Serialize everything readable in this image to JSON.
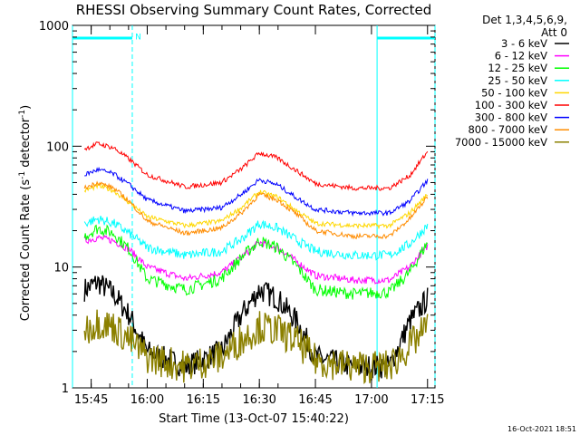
{
  "chart_data": {
    "type": "line",
    "title": "RHESSI Observing Summary Count Rates, Corrected",
    "xlabel": "Start Time (13-Oct-07 15:40:22)",
    "ylabel_main": "Corrected Count Rate (s",
    "ylabel_sup1": "-1",
    "ylabel_mid": " detector",
    "ylabel_sup2": "-1",
    "ylabel_end": ")",
    "y_scale": "log",
    "ylim": [
      1,
      1000
    ],
    "xlim_minutes": [
      15.6,
      60
    ],
    "xlim_hours": [
      15.6667,
      17.2833
    ],
    "y_tick_labels": [
      {
        "value": 1,
        "label": "1"
      },
      {
        "value": 10,
        "label": "10"
      },
      {
        "value": 100,
        "label": "100"
      },
      {
        "value": 1000,
        "label": "1000"
      }
    ],
    "x_tick_labels": [
      {
        "minutes": 45,
        "hour": 15,
        "label": "15:45"
      },
      {
        "minutes": 0,
        "hour": 16,
        "label": "16:00"
      },
      {
        "minutes": 15,
        "hour": 16,
        "label": "16:15"
      },
      {
        "minutes": 30,
        "hour": 16,
        "label": "16:30"
      },
      {
        "minutes": 45,
        "hour": 16,
        "label": "16:45"
      },
      {
        "minutes": 0,
        "hour": 17,
        "label": "17:00"
      },
      {
        "minutes": 15,
        "hour": 17,
        "label": "17:15"
      }
    ],
    "legend_title_1": "Det 1,3,4,5,6,9,",
    "legend_title_2": "Att 0",
    "legend_placement": "right",
    "series": [
      {
        "name": "3 - 6 keV",
        "color": "#000000",
        "x_hours": [
          15.72,
          15.78,
          15.85,
          15.92,
          16.0,
          16.17,
          16.33,
          16.42,
          16.5,
          16.58,
          16.67,
          16.75,
          16.92,
          17.08,
          17.17,
          17.25
        ],
        "y": [
          6.5,
          7.5,
          6.0,
          4.0,
          2.0,
          1.5,
          2.0,
          4.0,
          6.5,
          5.5,
          3.5,
          1.8,
          1.5,
          1.5,
          3.5,
          5.5
        ]
      },
      {
        "name": "6 - 12 keV",
        "color": "#ff00ff",
        "x_hours": [
          15.72,
          15.78,
          15.85,
          15.92,
          16.0,
          16.17,
          16.33,
          16.42,
          16.5,
          16.58,
          16.67,
          16.75,
          16.92,
          17.08,
          17.17,
          17.25
        ],
        "y": [
          16.5,
          17.5,
          16.5,
          14.0,
          10.0,
          8.0,
          9.0,
          12.0,
          16.0,
          14.5,
          11.0,
          8.5,
          7.8,
          7.8,
          10.0,
          15.0
        ]
      },
      {
        "name": "12 - 25 keV",
        "color": "#00ff00",
        "x_hours": [
          15.72,
          15.78,
          15.85,
          15.92,
          16.0,
          16.17,
          16.33,
          16.42,
          16.5,
          16.58,
          16.67,
          16.75,
          16.92,
          17.08,
          17.17,
          17.25
        ],
        "y": [
          18.0,
          21.0,
          19.0,
          14.0,
          8.0,
          6.5,
          8.0,
          12.0,
          16.5,
          14.5,
          10.0,
          6.5,
          6.0,
          6.2,
          9.0,
          16.0
        ]
      },
      {
        "name": "25 - 50 keV",
        "color": "#00ffff",
        "x_hours": [
          15.72,
          15.78,
          15.85,
          15.92,
          16.0,
          16.17,
          16.33,
          16.42,
          16.5,
          16.58,
          16.67,
          16.75,
          16.92,
          17.08,
          17.17,
          17.25
        ],
        "y": [
          23.0,
          25.0,
          23.0,
          19.0,
          14.5,
          12.5,
          13.5,
          17.0,
          23.0,
          21.0,
          16.5,
          13.5,
          12.5,
          12.5,
          15.5,
          22.0
        ]
      },
      {
        "name": "50 - 100 keV",
        "color": "#ffd700",
        "x_hours": [
          15.72,
          15.78,
          15.85,
          15.92,
          16.0,
          16.17,
          16.33,
          16.42,
          16.5,
          16.58,
          16.67,
          16.75,
          16.92,
          17.08,
          17.17,
          17.25
        ],
        "y": [
          43.0,
          47.0,
          43.0,
          34.0,
          26.0,
          22.0,
          24.0,
          31.0,
          42.0,
          38.0,
          29.0,
          23.0,
          22.0,
          22.0,
          28.0,
          40.0
        ]
      },
      {
        "name": "100 - 300 keV",
        "color": "#ff0000",
        "x_hours": [
          15.72,
          15.78,
          15.85,
          15.92,
          16.0,
          16.17,
          16.33,
          16.42,
          16.5,
          16.58,
          16.67,
          16.75,
          16.92,
          17.08,
          17.17,
          17.25
        ],
        "y": [
          95.0,
          105.0,
          97.0,
          78.0,
          58.0,
          46.0,
          50.0,
          65.0,
          88.0,
          80.0,
          62.0,
          49.0,
          45.0,
          45.0,
          57.0,
          90.0
        ]
      },
      {
        "name": "300 - 800 keV",
        "color": "#0000ff",
        "x_hours": [
          15.72,
          15.78,
          15.85,
          15.92,
          16.0,
          16.17,
          16.33,
          16.42,
          16.5,
          16.58,
          16.67,
          16.75,
          16.92,
          17.08,
          17.17,
          17.25
        ],
        "y": [
          58.0,
          64.0,
          59.0,
          48.0,
          36.0,
          29.0,
          31.0,
          40.0,
          53.0,
          48.0,
          37.0,
          30.0,
          28.0,
          28.0,
          35.0,
          52.0
        ]
      },
      {
        "name": "800 - 7000 keV",
        "color": "#ff8c00",
        "x_hours": [
          15.72,
          15.78,
          15.85,
          15.92,
          16.0,
          16.17,
          16.33,
          16.42,
          16.5,
          16.58,
          16.67,
          16.75,
          16.92,
          17.08,
          17.17,
          17.25
        ],
        "y": [
          45.0,
          50.0,
          45.0,
          35.0,
          24.0,
          19.0,
          21.0,
          28.0,
          40.0,
          36.0,
          27.0,
          20.0,
          18.0,
          18.0,
          25.0,
          38.0
        ]
      },
      {
        "name": "7000 - 15000 keV",
        "color": "#8b8000",
        "x_hours": [
          15.72,
          15.78,
          15.85,
          15.92,
          16.0,
          16.17,
          16.33,
          16.42,
          16.5,
          16.58,
          16.67,
          16.75,
          16.92,
          17.08,
          17.17,
          17.25
        ],
        "y": [
          3.0,
          3.5,
          3.2,
          2.5,
          1.8,
          1.5,
          1.8,
          2.5,
          3.2,
          3.0,
          2.4,
          1.7,
          1.5,
          1.5,
          2.2,
          3.2
        ]
      }
    ],
    "annotations": [
      {
        "text": "N",
        "x_hours": 15.93,
        "y": 750
      }
    ],
    "night_intervals_hours": [
      [
        15.6667,
        15.9333
      ],
      [
        17.025,
        17.2833
      ]
    ]
  },
  "footer_timestamp": "16-Oct-2021 18:51",
  "colors": {
    "grid_line": "#00ffff",
    "axis": "#000000",
    "background": "#ffffff"
  }
}
